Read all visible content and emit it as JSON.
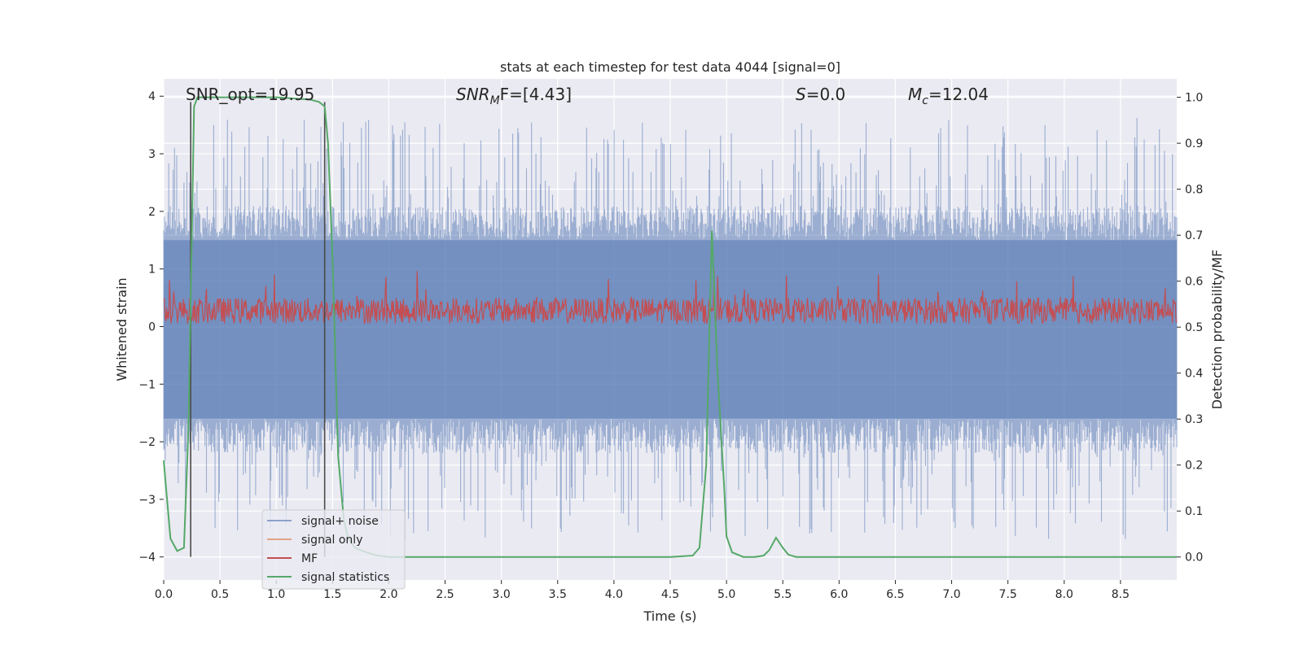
{
  "colors": {
    "background": "#eaeaf2",
    "grid": "#ffffff",
    "noise": "#4c72b0",
    "signal_only": "#dd8452",
    "mf": "#c44e52",
    "stats": "#55a868",
    "marker": "#4a4a4a",
    "text": "#262626"
  },
  "chart_data": {
    "type": "line",
    "title": "stats at each timestep for test data 4044 [signal=0]",
    "xlabel": "Time (s)",
    "ylabel": "Whitened strain",
    "y2label": "Detection probability/MF",
    "xlim": [
      0,
      9.0
    ],
    "ylim": [
      -4.4,
      4.3
    ],
    "y2lim": [
      -0.05,
      1.04
    ],
    "x_ticks": [
      0.0,
      0.5,
      1.0,
      1.5,
      2.0,
      2.5,
      3.0,
      3.5,
      4.0,
      4.5,
      5.0,
      5.5,
      6.0,
      6.5,
      7.0,
      7.5,
      8.0,
      8.5
    ],
    "x_tick_labels": [
      "0.0",
      "0.5",
      "1.0",
      "1.5",
      "2.0",
      "2.5",
      "3.0",
      "3.5",
      "4.0",
      "4.5",
      "5.0",
      "5.5",
      "6.0",
      "6.5",
      "7.0",
      "7.5",
      "8.0",
      "8.5"
    ],
    "y_ticks": [
      4,
      3,
      2,
      1,
      0,
      -1,
      -2,
      -3,
      -4
    ],
    "y_tick_labels": [
      "4",
      "3",
      "2",
      "1",
      "0",
      "−1",
      "−2",
      "−3",
      "−4"
    ],
    "y2_ticks": [
      1.0,
      0.9,
      0.8,
      0.7,
      0.6,
      0.5,
      0.4,
      0.3,
      0.2,
      0.1,
      0.0
    ],
    "y2_tick_labels": [
      "1.0",
      "0.9",
      "0.8",
      "0.7",
      "0.6",
      "0.5",
      "0.4",
      "0.3",
      "0.2",
      "0.1",
      "0.0"
    ],
    "grid": true,
    "legend_position": "lower-left",
    "annotations": {
      "snr_opt": "SNR_opt=19.95",
      "snr_mf_main": "SNR",
      "snr_mf_sub": "M",
      "snr_mf_tail": "F=[4.43]",
      "s_main": "S",
      "s_tail": "=0.0",
      "mc_main": "M",
      "mc_sub": "c",
      "mc_tail": "=12.04"
    },
    "vertical_markers": [
      0.24,
      1.43
    ],
    "noise_band": {
      "x_range": [
        0.0,
        9.0
      ],
      "typical_range": [
        -1.6,
        1.5
      ],
      "peak_range": [
        -4.0,
        3.9
      ]
    },
    "mf_band": {
      "x_range": [
        0.0,
        9.0
      ],
      "typical_range": [
        0.05,
        0.5
      ],
      "peak_max": 1.0
    },
    "series": [
      {
        "name": "signal+ noise",
        "style": "noise-band"
      },
      {
        "name": "signal only",
        "style": "line",
        "values": []
      },
      {
        "name": "MF",
        "style": "mf-band"
      },
      {
        "name": "signal statistics",
        "axis": "right",
        "x": [
          0.0,
          0.06,
          0.12,
          0.18,
          0.22,
          0.27,
          0.3,
          0.36,
          0.5,
          1.0,
          1.3,
          1.38,
          1.43,
          1.46,
          1.5,
          1.55,
          1.6,
          1.64,
          1.7,
          1.8,
          1.9,
          2.0,
          2.2,
          3.0,
          4.0,
          4.5,
          4.7,
          4.76,
          4.82,
          4.87,
          4.92,
          4.98,
          5.0,
          5.05,
          5.15,
          5.25,
          5.33,
          5.38,
          5.44,
          5.5,
          5.55,
          5.62,
          6.0,
          7.0,
          8.0,
          9.0
        ],
        "y": [
          0.21,
          0.04,
          0.013,
          0.02,
          0.28,
          0.98,
          1.0,
          1.0,
          1.0,
          1.0,
          0.995,
          0.99,
          0.98,
          0.9,
          0.65,
          0.22,
          0.08,
          0.04,
          0.02,
          0.01,
          0.003,
          0.0,
          0.0,
          0.0,
          0.0,
          0.0,
          0.003,
          0.02,
          0.2,
          0.71,
          0.4,
          0.15,
          0.045,
          0.01,
          0.0,
          0.0,
          0.003,
          0.015,
          0.042,
          0.02,
          0.005,
          0.0,
          0.0,
          0.0,
          0.0,
          0.0
        ]
      }
    ]
  }
}
